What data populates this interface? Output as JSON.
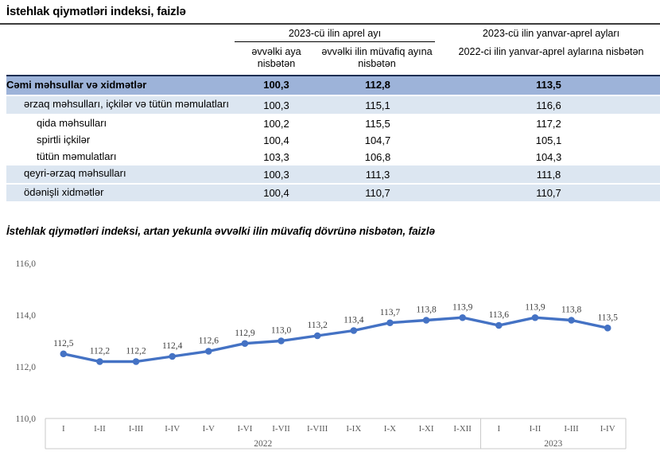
{
  "page": {
    "title": "İstehlak qiymətləri indeksi, faizlə"
  },
  "table": {
    "group_header": "2023-cü ilin aprel ayı",
    "col_prev_month": "əvvəlki aya nisbətən",
    "col_prev_year_month": "əvvəlki ilin müvafiq ayına nisbətən",
    "col_cumulative_line1": "2023-cü ilin yanvar-aprel ayları",
    "col_cumulative_line2": "2022-ci ilin yanvar-aprel aylarına nisbətən",
    "rows": [
      {
        "label": "Cəmi məhsullar və xidmətlər",
        "values": [
          "100,3",
          "112,8",
          "113,5"
        ]
      },
      {
        "label": "ərzaq məhsulları, içkilər və tütün məmulatları",
        "values": [
          "100,3",
          "115,1",
          "116,6"
        ]
      },
      {
        "label": "qida məhsulları",
        "values": [
          "100,2",
          "115,5",
          "117,2"
        ]
      },
      {
        "label": "spirtli içkilər",
        "values": [
          "100,4",
          "104,7",
          "105,1"
        ]
      },
      {
        "label": "tütün məmulatları",
        "values": [
          "103,3",
          "106,8",
          "104,3"
        ]
      },
      {
        "label": "qeyri-ərzaq məhsulları",
        "values": [
          "100,3",
          "111,3",
          "111,8"
        ]
      },
      {
        "label": "ödənişli xidmətlər",
        "values": [
          "100,4",
          "110,7",
          "110,7"
        ]
      }
    ],
    "colors": {
      "total_row_bg": "#9db3d9",
      "band_row_bg": "#dce6f1",
      "top_border": "#1d2e52"
    }
  },
  "chart_data": {
    "type": "line",
    "title": "İstehlak qiymətləri indeksi, artan yekunla əvvəlki ilin müvafiq dövrünə nisbətən, faizlə",
    "categories": [
      "I",
      "I-II",
      "I-III",
      "I-IV",
      "I-V",
      "I-VI",
      "I-VII",
      "I-VIII",
      "I-IX",
      "I-X",
      "I-XI",
      "I-XII",
      "I",
      "I-II",
      "I-III",
      "I-IV"
    ],
    "values": [
      112.5,
      112.2,
      112.2,
      112.4,
      112.6,
      112.9,
      113.0,
      113.2,
      113.4,
      113.7,
      113.8,
      113.9,
      113.6,
      113.9,
      113.8,
      113.5
    ],
    "point_labels": [
      "112,5",
      "112,2",
      "112,2",
      "112,4",
      "112,6",
      "112,9",
      "113,0",
      "113,2",
      "113,4",
      "113,7",
      "113,8",
      "113,9",
      "113,6",
      "113,9",
      "113,8",
      "113,5"
    ],
    "year_groups": [
      {
        "label": "2022",
        "span": 12
      },
      {
        "label": "2023",
        "span": 4
      }
    ],
    "yticks": [
      {
        "value": 116,
        "label": "116,0"
      },
      {
        "value": 114,
        "label": "114,0"
      },
      {
        "value": 112,
        "label": "112,0"
      },
      {
        "value": 110,
        "label": "110,0"
      }
    ],
    "ylim": [
      110,
      116
    ],
    "grid": false,
    "legend": false,
    "line_color": "#4472c4"
  }
}
